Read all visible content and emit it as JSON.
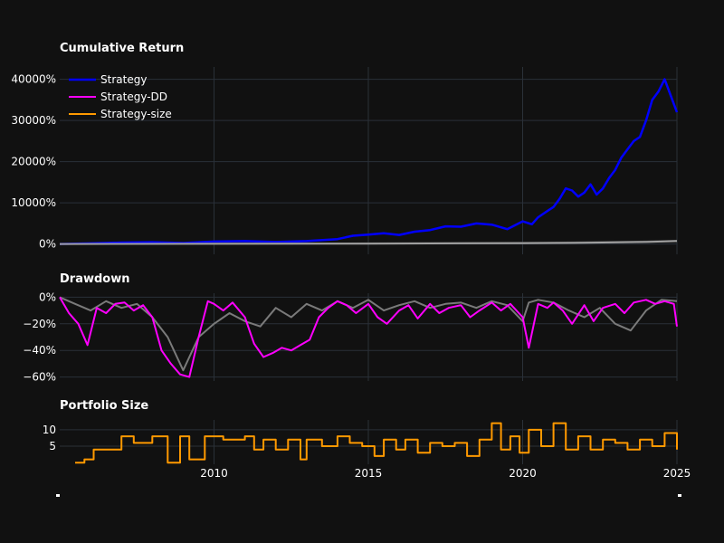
{
  "chart_data": [
    {
      "type": "line",
      "title": "Cumulative Return",
      "xlabel": "",
      "ylabel": "",
      "x_range": [
        2005,
        2025
      ],
      "ylim": [
        -2500,
        43000
      ],
      "y_ticks": [
        0,
        10000,
        20000,
        30000,
        40000
      ],
      "y_tick_labels": [
        "0%",
        "10000%",
        "20000%",
        "30000%",
        "40000%"
      ],
      "legend_position": "top-left",
      "series": [
        {
          "name": "Strategy",
          "color": "#0000ff",
          "x": [
            2005.0,
            2006.0,
            2007.0,
            2008.0,
            2009.0,
            2010.0,
            2011.0,
            2012.0,
            2013.0,
            2014.0,
            2014.5,
            2015.0,
            2015.5,
            2016.0,
            2016.5,
            2017.0,
            2017.5,
            2018.0,
            2018.5,
            2019.0,
            2019.5,
            2020.0,
            2020.3,
            2020.5,
            2020.8,
            2021.0,
            2021.2,
            2021.4,
            2021.6,
            2021.8,
            2022.0,
            2022.2,
            2022.4,
            2022.6,
            2022.8,
            2023.0,
            2023.2,
            2023.4,
            2023.6,
            2023.8,
            2024.0,
            2024.2,
            2024.4,
            2024.6,
            2024.8,
            2025.0
          ],
          "y": [
            0,
            150,
            350,
            450,
            250,
            600,
            700,
            500,
            700,
            1200,
            2000,
            2300,
            2600,
            2200,
            3000,
            3400,
            4300,
            4200,
            5000,
            4700,
            3600,
            5500,
            4800,
            6500,
            8000,
            9000,
            11000,
            13500,
            13000,
            11500,
            12500,
            14500,
            12000,
            13500,
            16000,
            18000,
            21000,
            23000,
            25000,
            26000,
            30000,
            35000,
            37000,
            40000,
            36000,
            32000
          ]
        },
        {
          "name": "Strategy-DD",
          "color": "#555555",
          "x": [
            2005,
            2010,
            2015,
            2020,
            2022,
            2024,
            2025
          ],
          "y": [
            0,
            100,
            150,
            300,
            400,
            600,
            800
          ]
        },
        {
          "name": "Strategy-size",
          "color": "#a0a0a0",
          "x": [
            2005,
            2010,
            2015,
            2020,
            2022,
            2024,
            2025
          ],
          "y": [
            0,
            50,
            100,
            200,
            300,
            500,
            700
          ]
        }
      ]
    },
    {
      "type": "line",
      "title": "Drawdown",
      "xlabel": "",
      "ylabel": "",
      "x_range": [
        2005,
        2025
      ],
      "ylim": [
        -63,
        3
      ],
      "y_ticks": [
        0,
        -20,
        -40,
        -60
      ],
      "y_tick_labels": [
        "0%",
        "−20%",
        "−40%",
        "−60%"
      ],
      "series": [
        {
          "name": "",
          "color": "#7a7a7a",
          "x": [
            2005.0,
            2005.5,
            2006.0,
            2006.5,
            2007.0,
            2007.5,
            2008.0,
            2008.5,
            2009.0,
            2009.5,
            2010.0,
            2010.5,
            2011.0,
            2011.5,
            2012.0,
            2012.5,
            2013.0,
            2013.5,
            2014.0,
            2014.5,
            2015.0,
            2015.5,
            2016.0,
            2016.5,
            2017.0,
            2017.5,
            2018.0,
            2018.5,
            2019.0,
            2019.5,
            2020.0,
            2020.2,
            2020.5,
            2021.0,
            2021.5,
            2022.0,
            2022.5,
            2023.0,
            2023.5,
            2024.0,
            2024.5,
            2025.0
          ],
          "y": [
            0,
            -5,
            -10,
            -3,
            -8,
            -5,
            -15,
            -30,
            -55,
            -30,
            -20,
            -12,
            -18,
            -22,
            -8,
            -15,
            -5,
            -10,
            -3,
            -8,
            -2,
            -10,
            -6,
            -3,
            -8,
            -5,
            -4,
            -8,
            -3,
            -6,
            -18,
            -4,
            -2,
            -4,
            -10,
            -15,
            -8,
            -20,
            -25,
            -10,
            -2,
            -3
          ]
        },
        {
          "name": "",
          "color": "#ff00ff",
          "x": [
            2005.0,
            2005.3,
            2005.6,
            2005.9,
            2006.2,
            2006.5,
            2006.8,
            2007.1,
            2007.4,
            2007.7,
            2008.0,
            2008.3,
            2008.6,
            2008.9,
            2009.2,
            2009.5,
            2009.8,
            2010.0,
            2010.3,
            2010.6,
            2011.0,
            2011.3,
            2011.6,
            2011.9,
            2012.2,
            2012.5,
            2012.8,
            2013.1,
            2013.4,
            2013.7,
            2014.0,
            2014.3,
            2014.6,
            2015.0,
            2015.3,
            2015.6,
            2016.0,
            2016.3,
            2016.6,
            2017.0,
            2017.3,
            2017.6,
            2018.0,
            2018.3,
            2018.6,
            2019.0,
            2019.3,
            2019.6,
            2020.0,
            2020.2,
            2020.5,
            2020.8,
            2021.0,
            2021.3,
            2021.6,
            2022.0,
            2022.3,
            2022.6,
            2023.0,
            2023.3,
            2023.6,
            2024.0,
            2024.3,
            2024.6,
            2024.9,
            2025.0
          ],
          "y": [
            0,
            -12,
            -20,
            -36,
            -8,
            -12,
            -5,
            -4,
            -10,
            -6,
            -15,
            -40,
            -50,
            -58,
            -60,
            -30,
            -3,
            -5,
            -10,
            -4,
            -15,
            -35,
            -45,
            -42,
            -38,
            -40,
            -36,
            -32,
            -15,
            -8,
            -3,
            -6,
            -12,
            -5,
            -15,
            -20,
            -10,
            -6,
            -16,
            -5,
            -12,
            -8,
            -6,
            -15,
            -10,
            -4,
            -10,
            -5,
            -15,
            -38,
            -5,
            -8,
            -4,
            -10,
            -20,
            -6,
            -18,
            -8,
            -5,
            -12,
            -4,
            -2,
            -5,
            -3,
            -5,
            -22
          ]
        }
      ]
    },
    {
      "type": "line",
      "title": "Portfolio Size",
      "xlabel": "",
      "ylabel": "",
      "x_range": [
        2005,
        2025
      ],
      "ylim": [
        -0.5,
        13
      ],
      "y_ticks": [
        5,
        10
      ],
      "y_tick_labels": [
        "5",
        "10"
      ],
      "series": [
        {
          "name": "Strategy-size",
          "color": "#ff9900",
          "x": [
            2005.5,
            2005.8,
            2006.1,
            2006.6,
            2007.0,
            2007.4,
            2008.0,
            2008.5,
            2008.9,
            2009.2,
            2009.7,
            2010.3,
            2011.0,
            2011.3,
            2011.6,
            2012.0,
            2012.4,
            2012.8,
            2013.0,
            2013.5,
            2014.0,
            2014.4,
            2014.8,
            2015.2,
            2015.5,
            2015.9,
            2016.2,
            2016.6,
            2017.0,
            2017.4,
            2017.8,
            2018.2,
            2018.6,
            2019.0,
            2019.3,
            2019.6,
            2019.9,
            2020.2,
            2020.6,
            2021.0,
            2021.4,
            2021.8,
            2022.2,
            2022.6,
            2023.0,
            2023.4,
            2023.8,
            2024.2,
            2024.6,
            2025.0
          ],
          "y": [
            0,
            1,
            4,
            4,
            8,
            6,
            8,
            0,
            8,
            1,
            8,
            7,
            8,
            4,
            7,
            4,
            7,
            1,
            7,
            5,
            8,
            6,
            5,
            2,
            7,
            4,
            7,
            3,
            6,
            5,
            6,
            2,
            7,
            12,
            4,
            8,
            3,
            10,
            5,
            12,
            4,
            8,
            4,
            7,
            6,
            4,
            7,
            5,
            9,
            4
          ]
        }
      ]
    }
  ],
  "x_tick_labels": [
    {
      "year": 2010,
      "label": "2010"
    },
    {
      "year": 2015,
      "label": "2015"
    },
    {
      "year": 2020,
      "label": "2020"
    },
    {
      "year": 2025,
      "label": "2025"
    }
  ],
  "legend": [
    {
      "name": "Strategy",
      "color": "#0000ff"
    },
    {
      "name": "Strategy-DD",
      "color": "#ff00ff"
    },
    {
      "name": "Strategy-size",
      "color": "#ff9900"
    }
  ]
}
